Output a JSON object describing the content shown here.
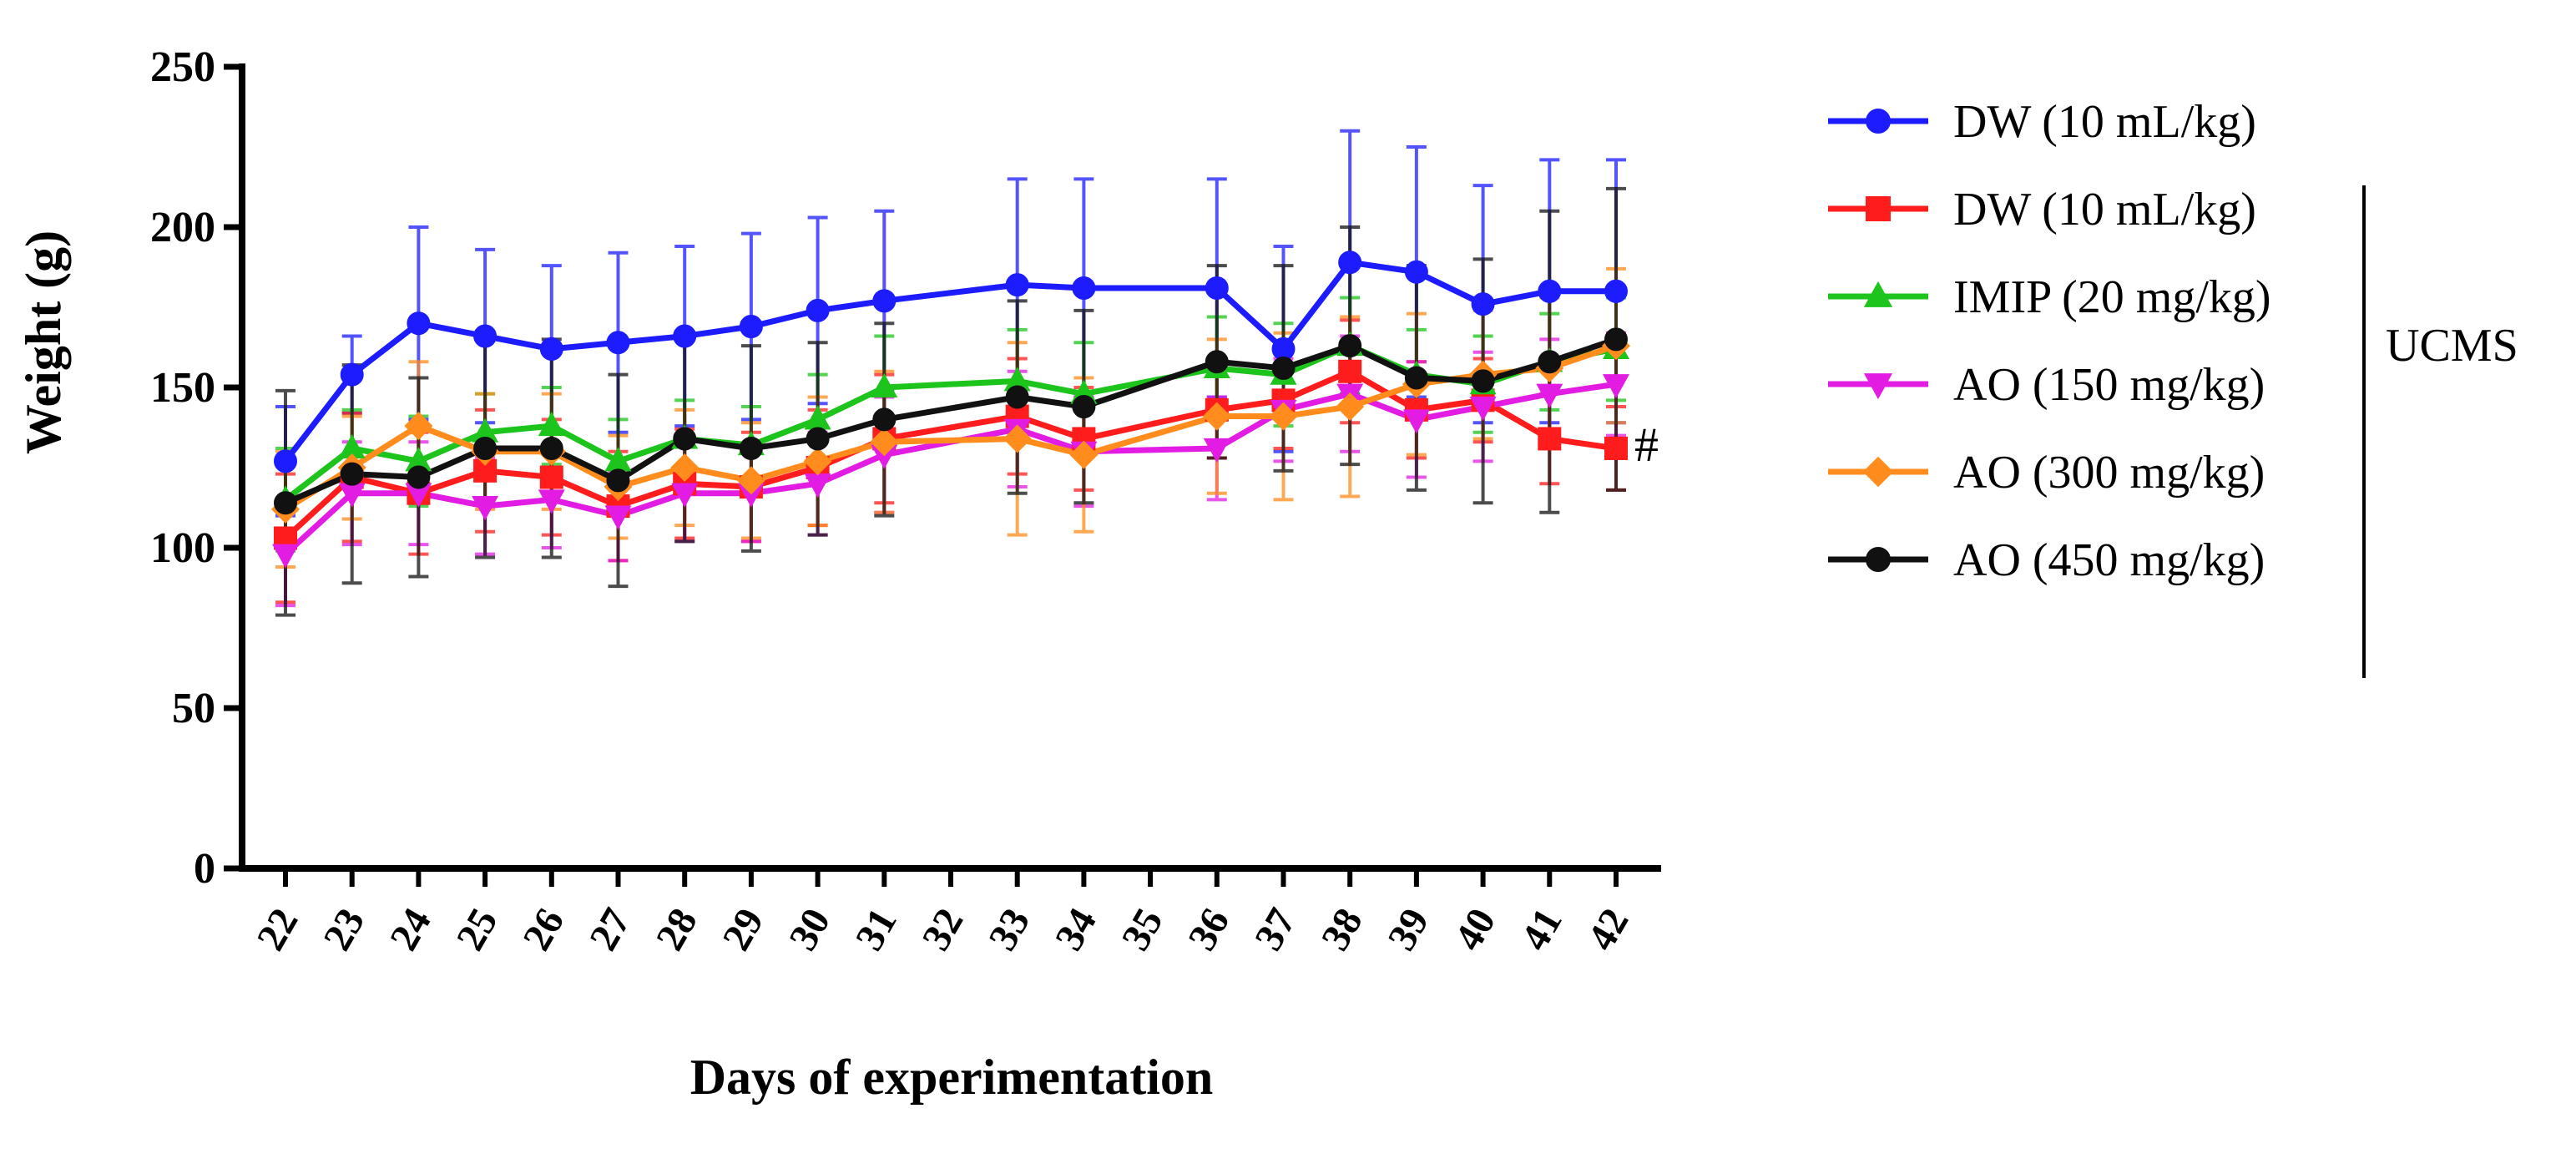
{
  "chart_data": {
    "type": "line",
    "title": "",
    "xlabel": "Days of experimentation",
    "ylabel": "Weight (g)",
    "ylim": [
      0,
      250
    ],
    "yticks": [
      0,
      50,
      100,
      150,
      200,
      250
    ],
    "categories": [
      "22",
      "23",
      "24",
      "25",
      "26",
      "27",
      "28",
      "29",
      "30",
      "31",
      "32",
      "33",
      "34",
      "35",
      "36",
      "37",
      "38",
      "39",
      "40",
      "41",
      "42"
    ],
    "grid": false,
    "legend_position": "right",
    "legend_group_label": "UCMS",
    "annotation": "#",
    "series": [
      {
        "name": "DW (10 mL/kg)",
        "color": "#1c1cff",
        "marker": "circle",
        "values": [
          127,
          154,
          170,
          166,
          162,
          164,
          166,
          169,
          174,
          177,
          null,
          182,
          181,
          null,
          181,
          162,
          189,
          186,
          176,
          180,
          180
        ],
        "errors": [
          17,
          12,
          30,
          27,
          26,
          28,
          28,
          29,
          29,
          28,
          null,
          33,
          34,
          null,
          34,
          32,
          41,
          39,
          37,
          41,
          41
        ]
      },
      {
        "name": "DW (10 mL/kg)",
        "color": "#ff1c1c",
        "marker": "square",
        "values": [
          103,
          122,
          117,
          124,
          122,
          113,
          120,
          119,
          125,
          134,
          null,
          141,
          134,
          null,
          143,
          146,
          155,
          143,
          146,
          134,
          131
        ],
        "errors": [
          20,
          20,
          19,
          19,
          18,
          17,
          17,
          17,
          18,
          20,
          null,
          18,
          16,
          null,
          15,
          15,
          16,
          15,
          13,
          14,
          13
        ]
      },
      {
        "name": "IMIP (20 mg/kg)",
        "color": "#1cc41c",
        "marker": "triangle-up",
        "values": [
          115,
          131,
          127,
          136,
          138,
          127,
          134,
          132,
          140,
          150,
          null,
          152,
          148,
          null,
          156,
          154,
          163,
          154,
          151,
          158,
          162
        ],
        "errors": [
          16,
          12,
          14,
          12,
          12,
          13,
          12,
          12,
          14,
          16,
          null,
          16,
          16,
          null,
          16,
          16,
          15,
          14,
          15,
          15,
          16
        ]
      },
      {
        "name": "AO (150 mg/kg)",
        "color": "#e21ce2",
        "marker": "triangle-down",
        "values": [
          98,
          117,
          117,
          113,
          115,
          110,
          117,
          117,
          120,
          129,
          null,
          137,
          130,
          null,
          131,
          143,
          148,
          140,
          144,
          148,
          151
        ],
        "errors": [
          16,
          16,
          16,
          15,
          15,
          14,
          15,
          15,
          16,
          18,
          null,
          18,
          17,
          null,
          16,
          16,
          18,
          18,
          17,
          17,
          16
        ]
      },
      {
        "name": "AO (300 mg/kg)",
        "color": "#ff8c1c",
        "marker": "diamond",
        "values": [
          112,
          125,
          138,
          130,
          130,
          119,
          125,
          121,
          127,
          133,
          null,
          134,
          129,
          null,
          141,
          141,
          144,
          151,
          154,
          156,
          163
        ],
        "errors": [
          18,
          16,
          20,
          18,
          18,
          16,
          18,
          18,
          20,
          22,
          null,
          30,
          24,
          null,
          24,
          26,
          28,
          22,
          20,
          22,
          24
        ]
      },
      {
        "name": "AO (450 mg/kg)",
        "color": "#111111",
        "marker": "circle",
        "values": [
          114,
          123,
          122,
          131,
          131,
          121,
          134,
          131,
          134,
          140,
          null,
          147,
          144,
          null,
          158,
          156,
          163,
          153,
          152,
          158,
          165
        ],
        "errors": [
          35,
          34,
          31,
          34,
          34,
          33,
          32,
          32,
          30,
          30,
          null,
          30,
          30,
          null,
          30,
          32,
          37,
          35,
          38,
          47,
          47
        ]
      }
    ]
  }
}
